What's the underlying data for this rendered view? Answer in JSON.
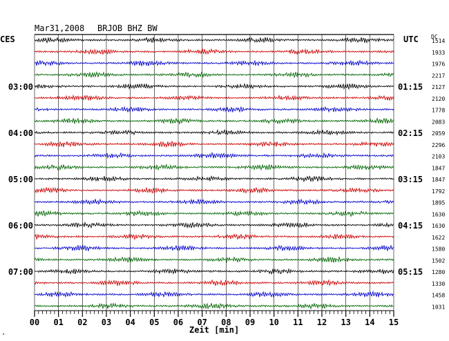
{
  "header": {
    "date": "Mar31,2008",
    "station": "BRJOB BHZ BW",
    "left_tz": "CES",
    "right_tz": "UTC",
    "dc_label": "DC"
  },
  "footer": {
    "xlabel": "Zeit [min]",
    "corner_mark": "\""
  },
  "chart_data": {
    "type": "line",
    "title": "Mar31,2008   BRJOB BHZ BW",
    "xlabel": "Zeit [min]",
    "xlim": [
      0,
      15
    ],
    "x_ticks": [
      "00",
      "01",
      "02",
      "03",
      "04",
      "05",
      "06",
      "07",
      "08",
      "09",
      "10",
      "11",
      "12",
      "13",
      "14",
      "15"
    ],
    "trace_colors": [
      "#000000",
      "#cc0000",
      "#0000cc",
      "#006600"
    ],
    "left_labels": [
      {
        "row": 4,
        "text": "03:00"
      },
      {
        "row": 8,
        "text": "04:00"
      },
      {
        "row": 12,
        "text": "05:00"
      },
      {
        "row": 16,
        "text": "06:00"
      },
      {
        "row": 20,
        "text": "07:00"
      }
    ],
    "right_labels": [
      {
        "row": 4,
        "text": "01:15"
      },
      {
        "row": 8,
        "text": "02:15"
      },
      {
        "row": 12,
        "text": "03:15"
      },
      {
        "row": 16,
        "text": "04:15"
      },
      {
        "row": 20,
        "text": "05:15"
      }
    ],
    "dc_values": [
      "1514",
      "1933",
      "1976",
      "2217",
      "2127",
      "2120",
      "1778",
      "2083",
      "2059",
      "2296",
      "2103",
      "1847",
      "1847",
      "1792",
      "1895",
      "1630",
      "1630",
      "1622",
      "1580",
      "1502",
      "1280",
      "1330",
      "1458",
      "1031"
    ]
  }
}
